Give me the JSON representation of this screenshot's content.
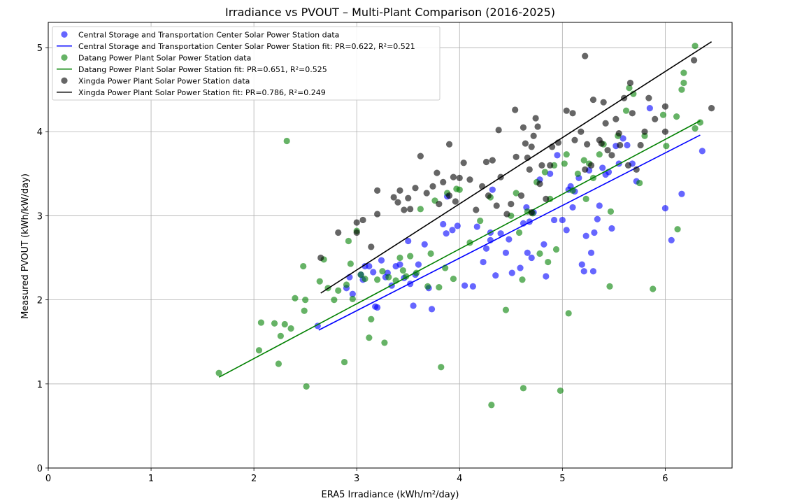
{
  "chart_data": {
    "type": "scatter",
    "title": "Irradiance vs PVOUT – Multi-Plant Comparison (2016-2025)",
    "xlabel": "ERA5 Irradiance (kWh/m²/day)",
    "ylabel": "Measured PVOUT (kWh/kW/day)",
    "xlim": [
      0,
      6.65
    ],
    "ylim": [
      0,
      5.3
    ],
    "xticks": [
      0,
      1,
      2,
      3,
      4,
      5,
      6
    ],
    "yticks": [
      0,
      1,
      2,
      3,
      4,
      5
    ],
    "grid": true,
    "legend_position": "top-left",
    "series": [
      {
        "name": "Central Storage and Transportation Center Solar Power Station data",
        "kind": "scatter",
        "color": "#0000ff",
        "points": [
          [
            2.62,
            1.69
          ],
          [
            2.9,
            2.14
          ],
          [
            2.93,
            2.27
          ],
          [
            2.96,
            2.07
          ],
          [
            3.04,
            2.3
          ],
          [
            3.06,
            2.24
          ],
          [
            3.08,
            2.4
          ],
          [
            3.12,
            2.4
          ],
          [
            3.16,
            2.33
          ],
          [
            3.18,
            1.92
          ],
          [
            3.2,
            1.91
          ],
          [
            3.24,
            2.47
          ],
          [
            3.28,
            2.27
          ],
          [
            3.3,
            2.32
          ],
          [
            3.34,
            2.17
          ],
          [
            3.38,
            2.4
          ],
          [
            3.42,
            2.42
          ],
          [
            3.46,
            2.26
          ],
          [
            3.5,
            2.7
          ],
          [
            3.52,
            2.19
          ],
          [
            3.55,
            1.93
          ],
          [
            3.57,
            2.3
          ],
          [
            3.6,
            2.42
          ],
          [
            3.66,
            2.66
          ],
          [
            3.7,
            2.14
          ],
          [
            3.73,
            1.89
          ],
          [
            3.84,
            2.9
          ],
          [
            3.87,
            2.79
          ],
          [
            3.93,
            2.83
          ],
          [
            3.98,
            2.88
          ],
          [
            4.05,
            2.17
          ],
          [
            4.13,
            2.16
          ],
          [
            4.17,
            2.87
          ],
          [
            4.23,
            2.45
          ],
          [
            4.26,
            2.61
          ],
          [
            4.3,
            2.71
          ],
          [
            4.32,
            3.31
          ],
          [
            4.35,
            2.29
          ],
          [
            4.4,
            2.79
          ],
          [
            4.45,
            2.56
          ],
          [
            4.48,
            2.72
          ],
          [
            4.51,
            2.32
          ],
          [
            4.59,
            2.38
          ],
          [
            4.62,
            2.91
          ],
          [
            4.66,
            2.56
          ],
          [
            4.68,
            2.93
          ],
          [
            4.72,
            3.04
          ],
          [
            4.78,
            3.43
          ],
          [
            4.82,
            2.66
          ],
          [
            4.84,
            2.28
          ],
          [
            4.88,
            3.5
          ],
          [
            4.92,
            2.95
          ],
          [
            4.95,
            3.72
          ],
          [
            5.0,
            2.95
          ],
          [
            5.04,
            2.83
          ],
          [
            5.06,
            3.31
          ],
          [
            5.08,
            3.35
          ],
          [
            5.1,
            3.1
          ],
          [
            5.12,
            3.29
          ],
          [
            5.16,
            3.45
          ],
          [
            5.19,
            2.42
          ],
          [
            5.21,
            2.34
          ],
          [
            5.23,
            2.76
          ],
          [
            5.26,
            3.54
          ],
          [
            5.28,
            2.56
          ],
          [
            5.3,
            2.34
          ],
          [
            5.31,
            2.8
          ],
          [
            5.34,
            2.96
          ],
          [
            5.36,
            3.12
          ],
          [
            5.39,
            3.57
          ],
          [
            5.42,
            3.49
          ],
          [
            5.45,
            3.52
          ],
          [
            5.48,
            2.85
          ],
          [
            5.52,
            3.83
          ],
          [
            5.55,
            3.62
          ],
          [
            5.59,
            3.92
          ],
          [
            5.63,
            3.84
          ],
          [
            5.68,
            3.62
          ],
          [
            5.72,
            3.41
          ],
          [
            5.85,
            4.28
          ],
          [
            6.0,
            3.09
          ],
          [
            6.06,
            2.71
          ],
          [
            6.16,
            3.26
          ],
          [
            6.36,
            3.77
          ],
          [
            4.65,
            3.1
          ],
          [
            4.3,
            2.8
          ],
          [
            4.7,
            2.5
          ],
          [
            3.88,
            3.23
          ]
        ]
      },
      {
        "name": "Central Storage and Transportation Center Solar Power Station fit: PR=0.622, R²=0.521",
        "kind": "line",
        "color": "#0000ff",
        "points": [
          [
            2.63,
            1.64
          ],
          [
            6.34,
            3.96
          ]
        ]
      },
      {
        "name": "Datang Power Plant Solar Power Station data",
        "kind": "scatter",
        "color": "#008000",
        "points": [
          [
            1.66,
            1.13
          ],
          [
            2.05,
            1.4
          ],
          [
            2.07,
            1.73
          ],
          [
            2.2,
            1.72
          ],
          [
            2.24,
            1.24
          ],
          [
            2.26,
            1.57
          ],
          [
            2.3,
            1.71
          ],
          [
            2.32,
            3.89
          ],
          [
            2.36,
            1.66
          ],
          [
            2.4,
            2.02
          ],
          [
            2.48,
            2.4
          ],
          [
            2.49,
            1.87
          ],
          [
            2.5,
            2.0
          ],
          [
            2.51,
            0.97
          ],
          [
            2.64,
            2.22
          ],
          [
            2.68,
            2.48
          ],
          [
            2.72,
            2.14
          ],
          [
            2.78,
            2.0
          ],
          [
            2.82,
            2.11
          ],
          [
            2.88,
            1.26
          ],
          [
            2.9,
            2.18
          ],
          [
            2.92,
            2.7
          ],
          [
            2.94,
            2.43
          ],
          [
            2.96,
            2.01
          ],
          [
            3.0,
            2.82
          ],
          [
            3.04,
            2.3
          ],
          [
            3.08,
            2.25
          ],
          [
            3.12,
            1.55
          ],
          [
            3.14,
            1.77
          ],
          [
            3.2,
            2.24
          ],
          [
            3.25,
            2.34
          ],
          [
            3.27,
            1.49
          ],
          [
            3.31,
            2.27
          ],
          [
            3.38,
            2.23
          ],
          [
            3.42,
            2.5
          ],
          [
            3.45,
            2.35
          ],
          [
            3.48,
            2.28
          ],
          [
            3.52,
            2.52
          ],
          [
            3.58,
            2.32
          ],
          [
            3.62,
            3.08
          ],
          [
            3.69,
            2.16
          ],
          [
            3.72,
            2.55
          ],
          [
            3.76,
            3.18
          ],
          [
            3.8,
            2.15
          ],
          [
            3.82,
            1.2
          ],
          [
            3.86,
            2.38
          ],
          [
            3.88,
            3.27
          ],
          [
            3.94,
            2.25
          ],
          [
            3.97,
            3.32
          ],
          [
            4.0,
            3.31
          ],
          [
            4.1,
            2.68
          ],
          [
            4.2,
            2.94
          ],
          [
            4.3,
            3.22
          ],
          [
            4.31,
            0.75
          ],
          [
            4.45,
            1.88
          ],
          [
            4.5,
            3.0
          ],
          [
            4.55,
            3.27
          ],
          [
            4.58,
            2.8
          ],
          [
            4.61,
            2.24
          ],
          [
            4.62,
            0.95
          ],
          [
            4.66,
            3.05
          ],
          [
            4.71,
            3.03
          ],
          [
            4.75,
            3.4
          ],
          [
            4.78,
            2.55
          ],
          [
            4.83,
            3.52
          ],
          [
            4.86,
            2.45
          ],
          [
            4.88,
            3.2
          ],
          [
            4.92,
            3.6
          ],
          [
            4.94,
            2.6
          ],
          [
            4.98,
            0.92
          ],
          [
            5.02,
            3.62
          ],
          [
            5.04,
            3.73
          ],
          [
            5.06,
            1.84
          ],
          [
            5.1,
            3.3
          ],
          [
            5.15,
            3.5
          ],
          [
            5.21,
            3.66
          ],
          [
            5.23,
            3.2
          ],
          [
            5.26,
            3.62
          ],
          [
            5.3,
            3.45
          ],
          [
            5.36,
            3.73
          ],
          [
            5.4,
            3.85
          ],
          [
            5.46,
            2.16
          ],
          [
            5.47,
            3.05
          ],
          [
            5.54,
            3.95
          ],
          [
            5.62,
            4.25
          ],
          [
            5.65,
            4.52
          ],
          [
            5.69,
            4.45
          ],
          [
            5.75,
            3.39
          ],
          [
            5.88,
            2.13
          ],
          [
            5.98,
            4.2
          ],
          [
            6.01,
            3.83
          ],
          [
            6.11,
            4.18
          ],
          [
            6.12,
            2.84
          ],
          [
            6.16,
            4.5
          ],
          [
            6.18,
            4.58
          ],
          [
            6.18,
            4.7
          ],
          [
            6.29,
            4.04
          ],
          [
            6.29,
            5.02
          ],
          [
            6.34,
            4.11
          ],
          [
            5.8,
            3.95
          ]
        ]
      },
      {
        "name": "Datang Power Plant Solar Power Station fit: PR=0.651, R²=0.525",
        "kind": "line",
        "color": "#008000",
        "points": [
          [
            1.66,
            1.08
          ],
          [
            6.34,
            4.13
          ]
        ]
      },
      {
        "name": "Xingda Power Plant Solar Power Station data",
        "kind": "scatter",
        "color": "#000000",
        "points": [
          [
            2.65,
            2.5
          ],
          [
            2.82,
            2.8
          ],
          [
            3.0,
            2.92
          ],
          [
            3.0,
            2.8
          ],
          [
            3.06,
            2.95
          ],
          [
            3.14,
            2.63
          ],
          [
            3.2,
            3.3
          ],
          [
            3.2,
            3.02
          ],
          [
            3.36,
            3.22
          ],
          [
            3.4,
            3.16
          ],
          [
            3.42,
            3.3
          ],
          [
            3.46,
            3.07
          ],
          [
            3.5,
            3.21
          ],
          [
            3.52,
            3.08
          ],
          [
            3.57,
            3.33
          ],
          [
            3.62,
            3.71
          ],
          [
            3.68,
            3.27
          ],
          [
            3.74,
            3.35
          ],
          [
            3.78,
            3.51
          ],
          [
            3.8,
            3.14
          ],
          [
            3.84,
            3.4
          ],
          [
            3.9,
            3.24
          ],
          [
            3.9,
            3.85
          ],
          [
            3.94,
            3.46
          ],
          [
            3.96,
            3.17
          ],
          [
            4.0,
            3.45
          ],
          [
            4.04,
            3.63
          ],
          [
            4.1,
            3.43
          ],
          [
            4.16,
            3.07
          ],
          [
            4.22,
            3.35
          ],
          [
            4.26,
            3.64
          ],
          [
            4.28,
            3.24
          ],
          [
            4.32,
            3.66
          ],
          [
            4.36,
            3.12
          ],
          [
            4.38,
            4.02
          ],
          [
            4.4,
            3.46
          ],
          [
            4.46,
            3.02
          ],
          [
            4.5,
            3.14
          ],
          [
            4.54,
            4.26
          ],
          [
            4.6,
            3.24
          ],
          [
            4.64,
            3.86
          ],
          [
            4.66,
            3.69
          ],
          [
            4.7,
            3.82
          ],
          [
            4.72,
            3.95
          ],
          [
            4.74,
            4.16
          ],
          [
            4.76,
            4.06
          ],
          [
            4.8,
            3.6
          ],
          [
            4.84,
            3.2
          ],
          [
            4.88,
            3.6
          ],
          [
            4.9,
            3.82
          ],
          [
            4.96,
            3.87
          ],
          [
            5.04,
            4.25
          ],
          [
            5.1,
            4.22
          ],
          [
            5.12,
            3.9
          ],
          [
            5.18,
            4.0
          ],
          [
            5.22,
            3.55
          ],
          [
            5.24,
            3.85
          ],
          [
            5.28,
            3.6
          ],
          [
            5.3,
            4.38
          ],
          [
            5.36,
            3.9
          ],
          [
            5.38,
            3.86
          ],
          [
            5.4,
            4.35
          ],
          [
            5.42,
            4.1
          ],
          [
            5.44,
            3.78
          ],
          [
            5.48,
            3.72
          ],
          [
            5.52,
            4.15
          ],
          [
            5.56,
            3.84
          ],
          [
            5.6,
            4.4
          ],
          [
            5.64,
            3.6
          ],
          [
            5.68,
            4.22
          ],
          [
            5.72,
            3.55
          ],
          [
            5.76,
            3.84
          ],
          [
            5.8,
            4.0
          ],
          [
            5.84,
            4.4
          ],
          [
            6.0,
            4.3
          ],
          [
            6.0,
            4.0
          ],
          [
            6.28,
            4.85
          ],
          [
            6.45,
            4.28
          ],
          [
            5.22,
            4.9
          ],
          [
            5.66,
            4.58
          ],
          [
            4.62,
            4.05
          ],
          [
            4.78,
            3.38
          ],
          [
            4.68,
            3.55
          ],
          [
            4.7,
            3.04
          ],
          [
            4.55,
            3.7
          ],
          [
            5.55,
            3.98
          ],
          [
            5.9,
            4.15
          ]
        ]
      },
      {
        "name": "Xingda Power Plant Solar Power Station fit: PR=0.786, R²=0.249",
        "kind": "line",
        "color": "#000000",
        "points": [
          [
            2.65,
            2.08
          ],
          [
            6.45,
            5.07
          ]
        ]
      }
    ]
  }
}
